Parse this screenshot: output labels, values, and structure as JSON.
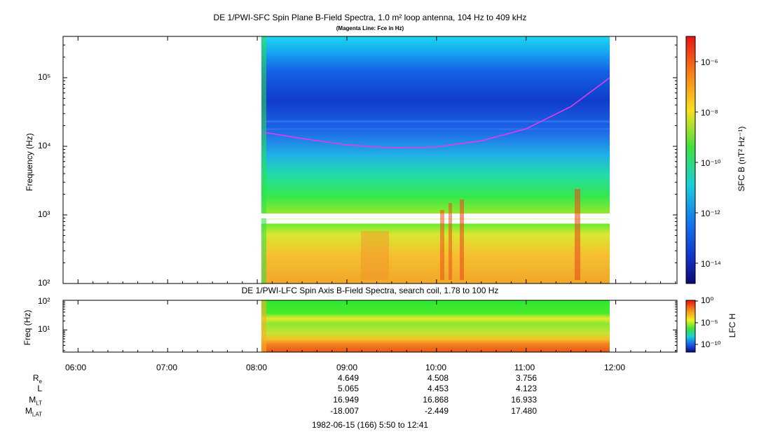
{
  "top_panel": {
    "title": "DE 1/PWI-SFC  Spin Plane B-Field Spectra, 1.0 m² loop antenna, 104 Hz to 409 kHz",
    "subtitle": "(Magenta Line: Fce in Hz)",
    "ylabel": "Frequency (Hz)",
    "colorbar_label": "SFC B (nT² Hz⁻¹)",
    "y_ticks": [
      "10²",
      "10³",
      "10⁴",
      "10⁵"
    ],
    "colorbar_ticks": [
      "10⁻⁶",
      "10⁻⁸",
      "10⁻¹⁰",
      "10⁻¹²",
      "10⁻¹⁴"
    ]
  },
  "bottom_panel": {
    "title": "DE 1/PWI-LFC  Spin Axis B-Field Spectra, search coil, 1.78 to 100 Hz",
    "ylabel": "Freq (Hz)",
    "colorbar_label": "LFC H",
    "y_ticks": [
      "10²",
      "10¹"
    ],
    "colorbar_ticks": [
      "10⁰",
      "10⁻⁵",
      "10⁻¹⁰"
    ]
  },
  "x_axis": {
    "ticks": [
      "06:00",
      "07:00",
      "08:00",
      "09:00",
      "10:00",
      "11:00",
      "12:00"
    ],
    "caption": "1982-06-15 (166) 5:50 to 12:41"
  },
  "ephemeris": {
    "rows": [
      {
        "label": "R",
        "sub": "e",
        "values": [
          "4.649",
          "4.508",
          "3.756"
        ]
      },
      {
        "label": "L",
        "sub": "",
        "values": [
          "5.065",
          "4.453",
          "4.123"
        ]
      },
      {
        "label": "M",
        "sub": "LT",
        "values": [
          "16.949",
          "16.868",
          "16.933"
        ]
      },
      {
        "label": "M",
        "sub": "LAT",
        "values": [
          "-18.007",
          "-2.449",
          "17.480"
        ]
      }
    ]
  },
  "colors": {
    "fce_line": "#e43be8",
    "background_fill": "#ffffff"
  },
  "chart_data": [
    {
      "type": "heatmap",
      "title": "DE 1/PWI-SFC  Spin Plane B-Field Spectra, 1.0 m² loop antenna, 104 Hz to 409 kHz",
      "xlabel": "",
      "ylabel": "Frequency (Hz)",
      "x_range": [
        "05:50",
        "12:41"
      ],
      "data_span": [
        "08:04",
        "11:56"
      ],
      "ylim": [
        100,
        409000
      ],
      "yscale": "log",
      "color_label": "SFC B (nT² Hz⁻¹)",
      "series": [
        {
          "name": "Fce",
          "x": [
            "08:04",
            "08:30",
            "09:00",
            "09:30",
            "10:00",
            "10:30",
            "11:00",
            "11:30",
            "11:56"
          ],
          "y": [
            16000,
            13000,
            10500,
            9500,
            9800,
            12000,
            18000,
            38000,
            100000
          ]
        }
      ]
    },
    {
      "type": "heatmap",
      "title": "DE 1/PWI-LFC  Spin Axis B-Field Spectra, search coil, 1.78 to 100 Hz",
      "ylabel": "Freq (Hz)",
      "x_range": [
        "05:50",
        "12:41"
      ],
      "data_span": [
        "08:04",
        "11:56"
      ],
      "ylim": [
        1.78,
        100
      ],
      "yscale": "log",
      "color_label": "LFC H"
    }
  ]
}
